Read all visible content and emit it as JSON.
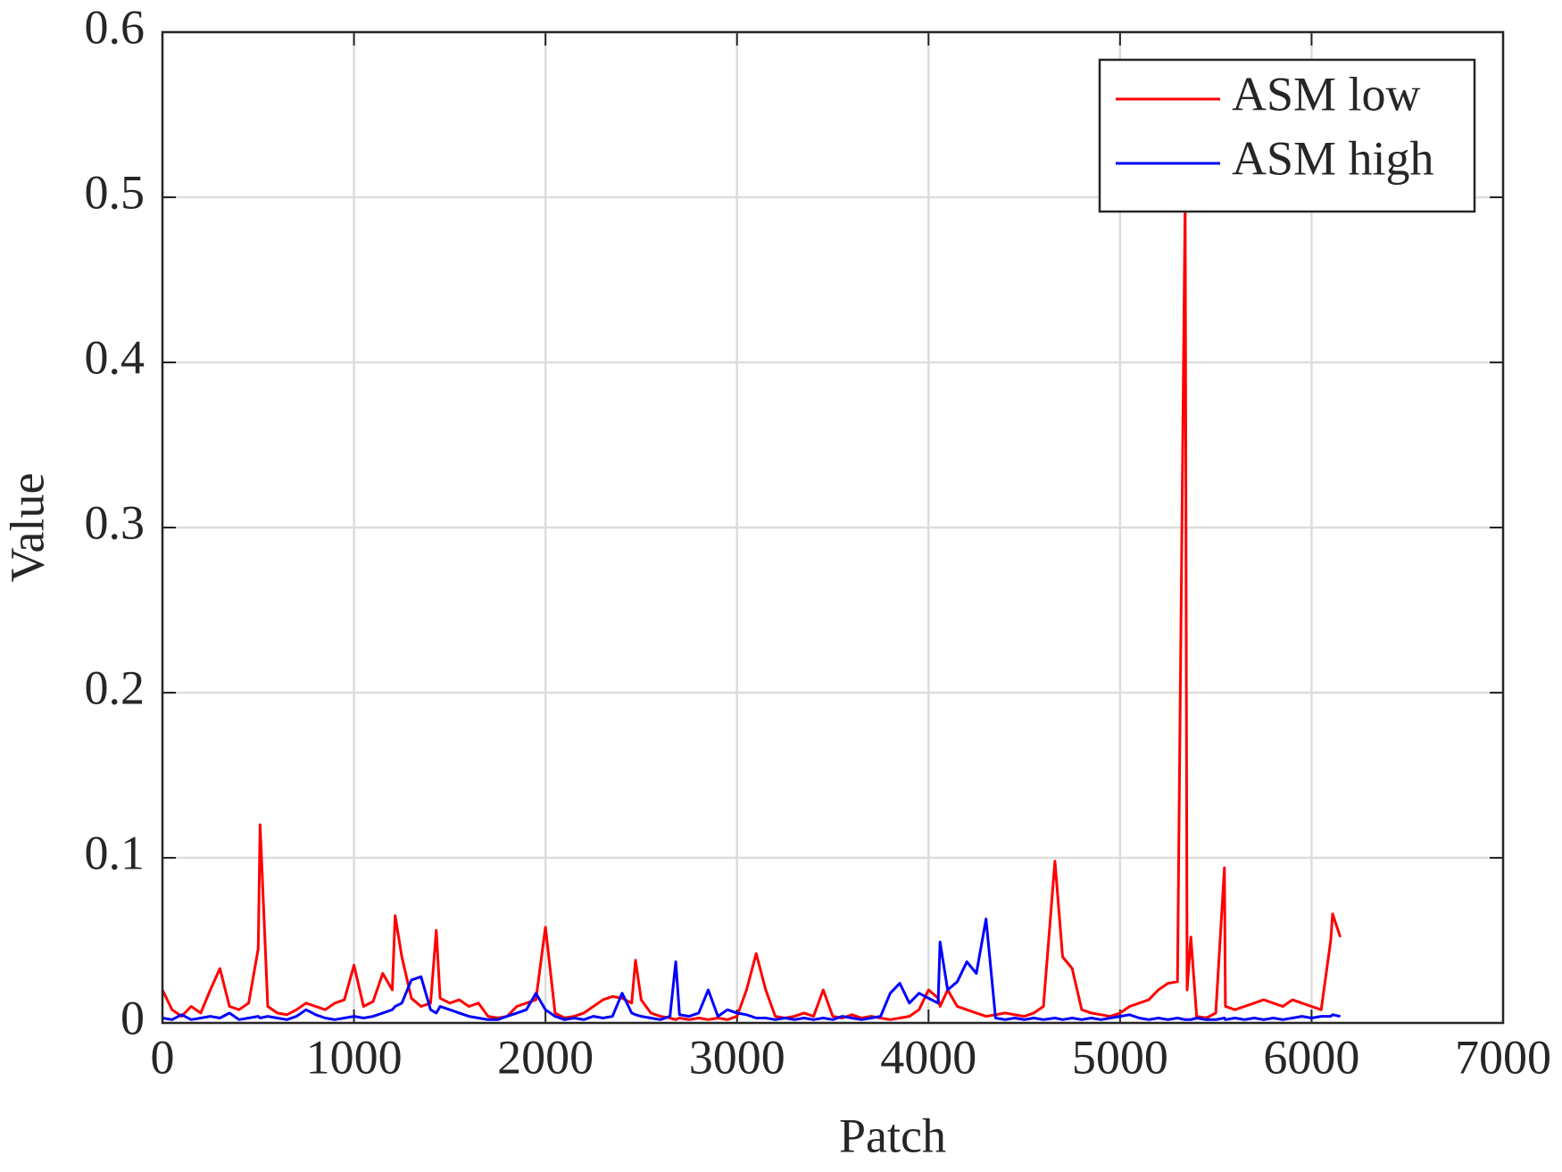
{
  "chart_data": {
    "type": "line",
    "xlabel": "Patch",
    "ylabel": "Value",
    "xlim": [
      0,
      7000
    ],
    "xticks": [
      0,
      1000,
      2000,
      3000,
      4000,
      5000,
      6000,
      7000
    ],
    "ylim": [
      0,
      0.6
    ],
    "yticks": [
      0,
      0.1,
      0.2,
      0.3,
      0.4,
      0.5,
      0.6
    ],
    "grid": true,
    "legend": "upper right",
    "x": [
      0,
      50,
      100,
      150,
      200,
      250,
      300,
      350,
      400,
      450,
      500,
      510,
      550,
      600,
      650,
      700,
      750,
      800,
      850,
      900,
      950,
      1000,
      1050,
      1100,
      1150,
      1200,
      1215,
      1250,
      1300,
      1350,
      1400,
      1430,
      1450,
      1500,
      1550,
      1600,
      1650,
      1700,
      1750,
      1800,
      1850,
      1900,
      1950,
      2000,
      2050,
      2100,
      2150,
      2200,
      2250,
      2300,
      2350,
      2400,
      2450,
      2470,
      2500,
      2550,
      2600,
      2650,
      2680,
      2700,
      2750,
      2800,
      2850,
      2900,
      2950,
      3000,
      3050,
      3100,
      3150,
      3200,
      3250,
      3300,
      3350,
      3400,
      3450,
      3500,
      3550,
      3600,
      3650,
      3700,
      3750,
      3800,
      3850,
      3900,
      3950,
      4000,
      4050,
      4060,
      4100,
      4150,
      4200,
      4250,
      4300,
      4350,
      4400,
      4450,
      4500,
      4550,
      4600,
      4660,
      4700,
      4750,
      4800,
      4850,
      4900,
      4950,
      5000,
      5050,
      5100,
      5150,
      5200,
      5250,
      5300,
      5340,
      5350,
      5370,
      5400,
      5450,
      5500,
      5545,
      5550,
      5600,
      5650,
      5700,
      5750,
      5800,
      5850,
      5900,
      5950,
      6000,
      6050,
      6100,
      6110,
      6150
    ],
    "series": [
      {
        "name": "ASM low",
        "color": "#ff0000",
        "values": [
          0.02,
          0.008,
          0.004,
          0.01,
          0.006,
          0.02,
          0.033,
          0.01,
          0.008,
          0.012,
          0.045,
          0.12,
          0.01,
          0.006,
          0.005,
          0.008,
          0.012,
          0.01,
          0.008,
          0.012,
          0.014,
          0.035,
          0.01,
          0.013,
          0.03,
          0.02,
          0.065,
          0.04,
          0.015,
          0.01,
          0.012,
          0.056,
          0.015,
          0.012,
          0.014,
          0.01,
          0.012,
          0.004,
          0.003,
          0.004,
          0.01,
          0.012,
          0.014,
          0.058,
          0.006,
          0.003,
          0.004,
          0.006,
          0.01,
          0.014,
          0.016,
          0.015,
          0.012,
          0.038,
          0.014,
          0.006,
          0.004,
          0.003,
          0.002,
          0.003,
          0.002,
          0.003,
          0.002,
          0.003,
          0.002,
          0.004,
          0.02,
          0.042,
          0.02,
          0.004,
          0.003,
          0.004,
          0.006,
          0.004,
          0.02,
          0.004,
          0.003,
          0.005,
          0.003,
          0.004,
          0.003,
          0.002,
          0.003,
          0.004,
          0.008,
          0.02,
          0.015,
          0.01,
          0.02,
          0.01,
          0.008,
          0.006,
          0.004,
          0.005,
          0.006,
          0.005,
          0.004,
          0.006,
          0.01,
          0.098,
          0.04,
          0.033,
          0.008,
          0.006,
          0.005,
          0.004,
          0.006,
          0.01,
          0.012,
          0.014,
          0.02,
          0.024,
          0.025,
          0.5,
          0.02,
          0.052,
          0.004,
          0.003,
          0.006,
          0.094,
          0.01,
          0.008,
          0.01,
          0.012,
          0.014,
          0.012,
          0.01,
          0.014,
          0.012,
          0.01,
          0.008,
          0.05,
          0.066,
          0.052
        ]
      },
      {
        "name": "ASM high",
        "color": "#0000ff",
        "values": [
          0.003,
          0.002,
          0.005,
          0.002,
          0.003,
          0.004,
          0.003,
          0.006,
          0.002,
          0.003,
          0.004,
          0.003,
          0.004,
          0.003,
          0.002,
          0.004,
          0.008,
          0.005,
          0.003,
          0.002,
          0.003,
          0.004,
          0.003,
          0.004,
          0.006,
          0.008,
          0.01,
          0.012,
          0.026,
          0.028,
          0.008,
          0.006,
          0.01,
          0.008,
          0.006,
          0.004,
          0.003,
          0.002,
          0.002,
          0.004,
          0.006,
          0.008,
          0.018,
          0.008,
          0.004,
          0.002,
          0.003,
          0.002,
          0.004,
          0.003,
          0.004,
          0.018,
          0.006,
          0.005,
          0.004,
          0.003,
          0.002,
          0.004,
          0.037,
          0.005,
          0.004,
          0.006,
          0.02,
          0.004,
          0.008,
          0.006,
          0.005,
          0.003,
          0.003,
          0.002,
          0.003,
          0.002,
          0.003,
          0.002,
          0.003,
          0.002,
          0.004,
          0.003,
          0.002,
          0.003,
          0.004,
          0.018,
          0.024,
          0.012,
          0.018,
          0.015,
          0.012,
          0.049,
          0.02,
          0.025,
          0.037,
          0.03,
          0.063,
          0.003,
          0.002,
          0.003,
          0.002,
          0.003,
          0.002,
          0.003,
          0.002,
          0.003,
          0.002,
          0.003,
          0.002,
          0.003,
          0.004,
          0.005,
          0.003,
          0.002,
          0.003,
          0.002,
          0.003,
          0.002,
          0.002,
          0.002,
          0.003,
          0.002,
          0.002,
          0.003,
          0.002,
          0.003,
          0.002,
          0.003,
          0.002,
          0.003,
          0.002,
          0.003,
          0.004,
          0.003,
          0.004,
          0.004,
          0.005,
          0.004
        ]
      }
    ]
  }
}
